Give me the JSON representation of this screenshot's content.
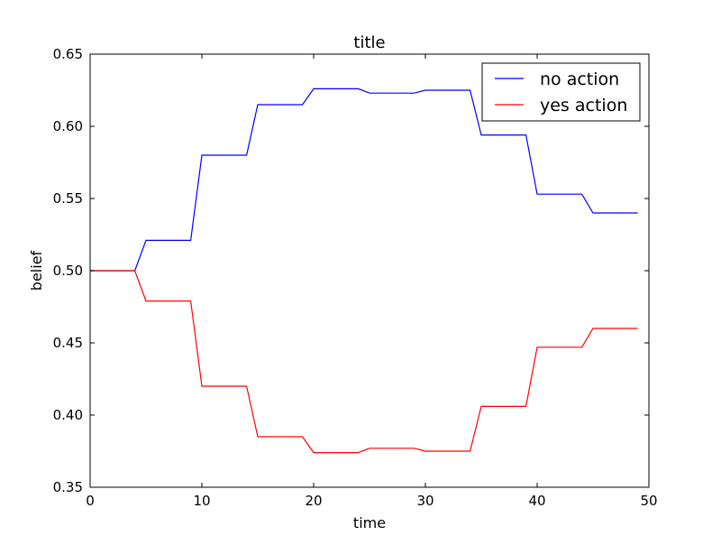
{
  "chart_data": {
    "type": "line",
    "title": "title",
    "xlabel": "time",
    "ylabel": "belief",
    "xlim": [
      0,
      50
    ],
    "ylim": [
      0.35,
      0.65
    ],
    "xticks": [
      0,
      10,
      20,
      30,
      40,
      50
    ],
    "xtick_labels": [
      "0",
      "10",
      "20",
      "30",
      "40",
      "50"
    ],
    "yticks": [
      0.35,
      0.4,
      0.45,
      0.5,
      0.55,
      0.6,
      0.65
    ],
    "ytick_labels": [
      "0.35",
      "0.40",
      "0.45",
      "0.50",
      "0.55",
      "0.60",
      "0.65"
    ],
    "grid": false,
    "legend_position": "top-right",
    "series": [
      {
        "name": "no action",
        "color": "#0000ff",
        "x": [
          0,
          4,
          5,
          9,
          10,
          14,
          15,
          19,
          20,
          24,
          25,
          29,
          30,
          34,
          35,
          39,
          40,
          44,
          45,
          49
        ],
        "y": [
          0.5,
          0.5,
          0.521,
          0.521,
          0.58,
          0.58,
          0.615,
          0.615,
          0.626,
          0.626,
          0.623,
          0.623,
          0.625,
          0.625,
          0.594,
          0.594,
          0.553,
          0.553,
          0.54,
          0.54
        ]
      },
      {
        "name": "yes action",
        "color": "#ff0000",
        "x": [
          0,
          4,
          5,
          9,
          10,
          14,
          15,
          19,
          20,
          24,
          25,
          29,
          30,
          34,
          35,
          39,
          40,
          44,
          45,
          49
        ],
        "y": [
          0.5,
          0.5,
          0.479,
          0.479,
          0.42,
          0.42,
          0.385,
          0.385,
          0.374,
          0.374,
          0.377,
          0.377,
          0.375,
          0.375,
          0.406,
          0.406,
          0.447,
          0.447,
          0.46,
          0.46
        ]
      }
    ]
  }
}
